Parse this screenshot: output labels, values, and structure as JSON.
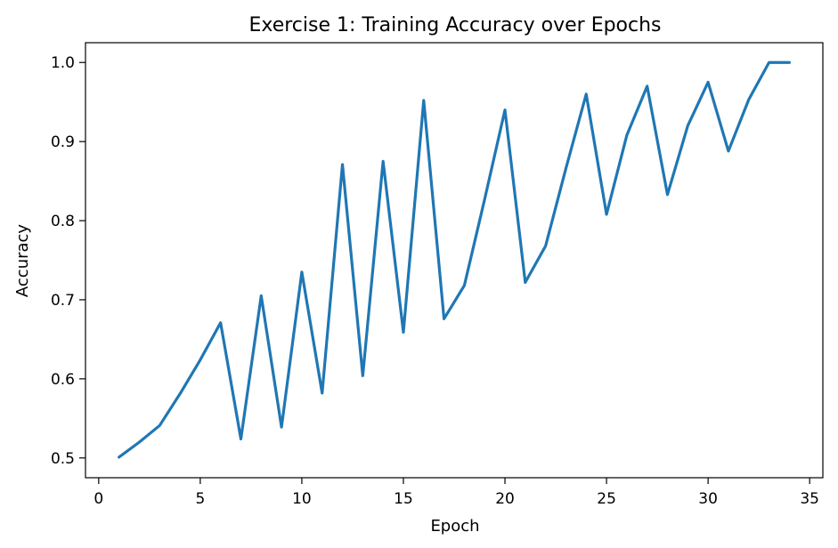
{
  "chart_data": {
    "type": "line",
    "title": "Exercise 1: Training Accuracy over Epochs",
    "xlabel": "Epoch",
    "ylabel": "Accuracy",
    "xlim": [
      -0.65,
      35.65
    ],
    "ylim": [
      0.475,
      1.025
    ],
    "xticks": [
      0,
      5,
      10,
      15,
      20,
      25,
      30,
      35
    ],
    "xtick_labels": [
      "0",
      "5",
      "10",
      "15",
      "20",
      "25",
      "30",
      "35"
    ],
    "yticks": [
      0.5,
      0.6,
      0.7,
      0.8,
      0.9,
      1.0
    ],
    "ytick_labels": [
      "0.5",
      "0.6",
      "0.7",
      "0.8",
      "0.9",
      "1.0"
    ],
    "grid": false,
    "series_color": "#1f77b4",
    "x": [
      1,
      2,
      3,
      4,
      5,
      6,
      7,
      8,
      9,
      10,
      11,
      12,
      13,
      14,
      15,
      16,
      17,
      18,
      19,
      20,
      21,
      22,
      23,
      24,
      25,
      26,
      27,
      28,
      29,
      30,
      31,
      32,
      33,
      34
    ],
    "y": [
      0.501,
      0.52,
      0.541,
      0.581,
      0.624,
      0.671,
      0.524,
      0.705,
      0.539,
      0.735,
      0.582,
      0.871,
      0.604,
      0.875,
      0.659,
      0.952,
      0.676,
      0.718,
      0.827,
      0.94,
      0.722,
      0.768,
      0.866,
      0.96,
      0.808,
      0.908,
      0.97,
      0.833,
      0.92,
      0.975,
      0.888,
      0.953,
      1.0,
      1.0
    ]
  }
}
